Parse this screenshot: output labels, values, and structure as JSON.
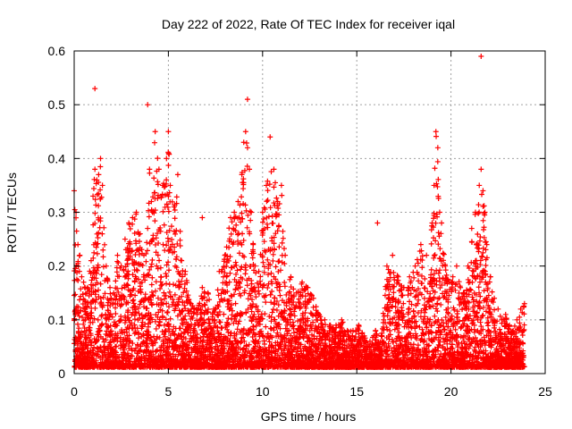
{
  "chart_data": {
    "type": "scatter",
    "title": "Day 222 of 2022, Rate Of TEC Index for receiver iqal",
    "xlabel": "GPS time / hours",
    "ylabel": "ROTI / TECUs",
    "xlim": [
      0,
      25
    ],
    "ylim": [
      0,
      0.6
    ],
    "xticks": [
      "0",
      "5",
      "10",
      "15",
      "20",
      "25"
    ],
    "yticks": [
      "0",
      "0.1",
      "0.2",
      "0.3",
      "0.4",
      "0.5",
      "0.6"
    ],
    "grid": true,
    "legend": "none",
    "marker": "plus",
    "color": "#ff0000",
    "series": [
      {
        "x": [
          0.0,
          0.1,
          0.2,
          0.3,
          0.4,
          0.5,
          0.7,
          0.9,
          1.0,
          1.1,
          1.2,
          1.3,
          1.4,
          1.5,
          1.7,
          1.9,
          2.1,
          2.3,
          2.5,
          2.7,
          2.9,
          3.1,
          3.3,
          3.5,
          3.7,
          3.9,
          4.0,
          4.1,
          4.3,
          4.5,
          4.7,
          4.9,
          5.0,
          5.1,
          5.3,
          5.5,
          5.7,
          5.9,
          6.2,
          6.5,
          6.8,
          7.1,
          7.4,
          7.7,
          8.0,
          8.3,
          8.5,
          8.7,
          8.9,
          9.0,
          9.1,
          9.2,
          9.3,
          9.4,
          9.5,
          9.6,
          9.8,
          10.0,
          10.2,
          10.4,
          10.6,
          10.8,
          11.0,
          11.2,
          11.5,
          11.8,
          12.1,
          12.4,
          12.7,
          13.0,
          13.3,
          13.6,
          13.9,
          14.2,
          14.5,
          14.8,
          15.1,
          15.4,
          15.7,
          16.0,
          16.3,
          16.6,
          16.9,
          17.2,
          17.5,
          17.8,
          18.1,
          18.4,
          18.7,
          19.0,
          19.1,
          19.2,
          19.3,
          19.4,
          19.5,
          19.7,
          19.9,
          20.1,
          20.3,
          20.5,
          20.7,
          20.9,
          21.1,
          21.3,
          21.5,
          21.6,
          21.7,
          21.8,
          21.9,
          22.1,
          22.3,
          22.5,
          22.7,
          22.9,
          23.1,
          23.3,
          23.5,
          23.7,
          23.9
        ],
        "y": [
          0.34,
          0.3,
          0.24,
          0.22,
          0.18,
          0.17,
          0.16,
          0.21,
          0.33,
          0.38,
          0.36,
          0.37,
          0.4,
          0.35,
          0.2,
          0.16,
          0.15,
          0.22,
          0.2,
          0.25,
          0.28,
          0.29,
          0.3,
          0.26,
          0.22,
          0.27,
          0.38,
          0.32,
          0.45,
          0.38,
          0.35,
          0.4,
          0.45,
          0.35,
          0.31,
          0.37,
          0.21,
          0.19,
          0.13,
          0.12,
          0.16,
          0.15,
          0.12,
          0.19,
          0.22,
          0.29,
          0.3,
          0.32,
          0.37,
          0.43,
          0.45,
          0.42,
          0.38,
          0.3,
          0.24,
          0.2,
          0.19,
          0.3,
          0.35,
          0.44,
          0.38,
          0.32,
          0.35,
          0.22,
          0.18,
          0.15,
          0.17,
          0.16,
          0.14,
          0.11,
          0.1,
          0.09,
          0.09,
          0.1,
          0.08,
          0.08,
          0.09,
          0.07,
          0.06,
          0.08,
          0.07,
          0.2,
          0.22,
          0.18,
          0.16,
          0.18,
          0.2,
          0.24,
          0.22,
          0.28,
          0.35,
          0.45,
          0.42,
          0.3,
          0.28,
          0.2,
          0.17,
          0.18,
          0.2,
          0.16,
          0.15,
          0.2,
          0.27,
          0.3,
          0.35,
          0.38,
          0.34,
          0.3,
          0.24,
          0.18,
          0.14,
          0.12,
          0.1,
          0.11,
          0.09,
          0.08,
          0.1,
          0.12,
          0.13
        ]
      }
    ],
    "outliers": {
      "x": [
        1.1,
        3.9,
        9.2,
        21.6,
        16.1,
        6.8,
        8.5
      ],
      "y": [
        0.53,
        0.5,
        0.51,
        0.59,
        0.28,
        0.29,
        0.29
      ]
    }
  }
}
